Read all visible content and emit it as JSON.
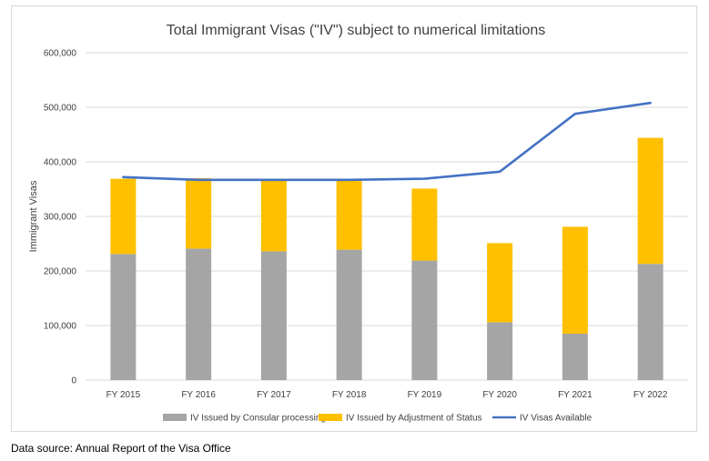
{
  "chart_data": {
    "type": "bar",
    "stacked": true,
    "title": "Total Immigrant Visas (\"IV\") subject to numerical limitations",
    "xlabel": "",
    "ylabel": "Immigrant Visas",
    "ylim": [
      0,
      600000
    ],
    "yticks": [
      0,
      100000,
      200000,
      300000,
      400000,
      500000,
      600000
    ],
    "ytick_labels": [
      "0",
      "100,000",
      "200,000",
      "300,000",
      "400,000",
      "500,000",
      "600,000"
    ],
    "grid": true,
    "legend_position": "bottom",
    "categories": [
      "FY 2015",
      "FY 2016",
      "FY 2017",
      "FY 2018",
      "FY 2019",
      "FY 2020",
      "FY 2021",
      "FY 2022"
    ],
    "series": [
      {
        "name": "IV Issued by Consular processing",
        "kind": "bar",
        "color": "#a5a5a5",
        "values": [
          231000,
          241000,
          236000,
          239000,
          219000,
          106000,
          85000,
          213000
        ]
      },
      {
        "name": "IV Issued by Adjustment of Status",
        "kind": "bar",
        "color": "#ffc000",
        "values": [
          138000,
          129000,
          130000,
          127000,
          132000,
          145000,
          196000,
          231000
        ]
      },
      {
        "name": "IV Visas Available",
        "kind": "line",
        "color": "#4472c4",
        "values": [
          372000,
          367000,
          367000,
          367000,
          369000,
          382000,
          488000,
          508000
        ]
      }
    ]
  },
  "source_note": "Data source: Annual Report of the Visa Office"
}
